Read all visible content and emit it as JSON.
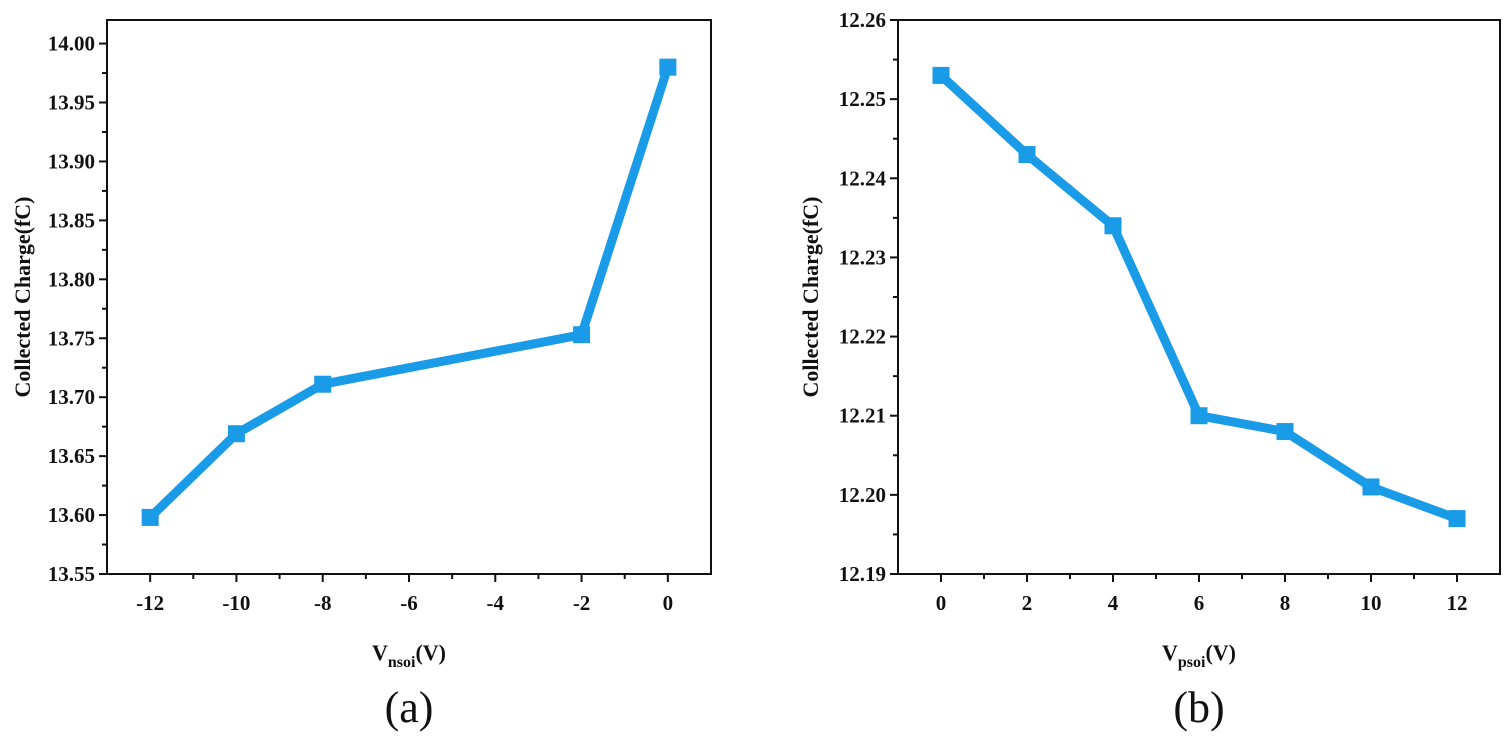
{
  "chart_data": [
    {
      "type": "line",
      "caption": "(a)",
      "ylabel": "Collected Charge(fC)",
      "xlabel": {
        "main": "V",
        "sub": "nsoi",
        "suffix": "(V)"
      },
      "x": [
        -12,
        -10,
        -8,
        -2,
        0
      ],
      "values": [
        13.598,
        13.669,
        13.711,
        13.753,
        13.98
      ],
      "xlim": [
        -13,
        1
      ],
      "ylim": [
        13.55,
        14.02
      ],
      "xticks": [
        -12,
        -10,
        -8,
        -6,
        -4,
        -2,
        0
      ],
      "xtick_labels": [
        "-12",
        "-10",
        "-8",
        "-6",
        "-4",
        "-2",
        "0"
      ],
      "yticks": [
        13.55,
        13.6,
        13.65,
        13.7,
        13.75,
        13.8,
        13.85,
        13.9,
        13.95,
        14.0
      ],
      "ytick_labels": [
        "13.55",
        "13.60",
        "13.65",
        "13.70",
        "13.75",
        "13.80",
        "13.85",
        "13.90",
        "13.95",
        "14.00"
      ],
      "grid": false,
      "line_color": "#1a9be8",
      "marker": "square"
    },
    {
      "type": "line",
      "caption": "(b)",
      "ylabel": "Collected Charge(fC)",
      "xlabel": {
        "main": "V",
        "sub": "psoi",
        "suffix": "(V)"
      },
      "x": [
        0,
        2,
        4,
        6,
        8,
        10,
        12
      ],
      "values": [
        12.253,
        12.243,
        12.234,
        12.21,
        12.208,
        12.201,
        12.197
      ],
      "xlim": [
        -1,
        13
      ],
      "ylim": [
        12.19,
        12.26
      ],
      "xticks": [
        0,
        2,
        4,
        6,
        8,
        10,
        12
      ],
      "xtick_labels": [
        "0",
        "2",
        "4",
        "6",
        "8",
        "10",
        "12"
      ],
      "yticks": [
        12.19,
        12.2,
        12.21,
        12.22,
        12.23,
        12.24,
        12.25,
        12.26
      ],
      "ytick_labels": [
        "12.19",
        "12.20",
        "12.21",
        "12.22",
        "12.23",
        "12.24",
        "12.25",
        "12.26"
      ],
      "grid": false,
      "line_color": "#1a9be8",
      "marker": "square"
    }
  ]
}
